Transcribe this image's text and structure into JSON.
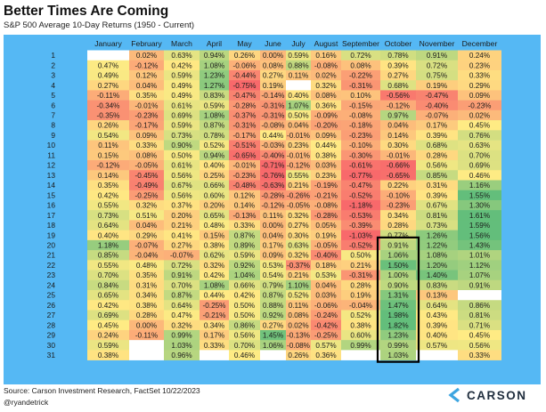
{
  "header": {
    "title": "Better Times Are Coming",
    "subtitle": "S&P 500 Average 10-Day Returns (1950 - Current)"
  },
  "footer": {
    "source": "Source: Carson Investment Research, FactSet 10/22/2023",
    "handle": "@ryandetrick"
  },
  "logo": {
    "name": "CARSON",
    "icon": "carson-chevron-icon"
  },
  "colors": {
    "panel": "#55b8f4",
    "low": "#f8696b",
    "mid": "#ffeb84",
    "high": "#63be7b",
    "blank": "#ffffff",
    "highlight_box": "#000000"
  },
  "chart_data": {
    "type": "heatmap",
    "title": "Better Times Are Coming",
    "subtitle": "S&P 500 Average 10-Day Returns (1950 - Current)",
    "columns": [
      "January",
      "February",
      "March",
      "April",
      "May",
      "June",
      "July",
      "August",
      "September",
      "October",
      "November",
      "December"
    ],
    "rows": [
      "1",
      "2",
      "3",
      "4",
      "5",
      "6",
      "7",
      "8",
      "9",
      "10",
      "11",
      "12",
      "13",
      "14",
      "15",
      "16",
      "17",
      "18",
      "19",
      "20",
      "21",
      "22",
      "23",
      "24",
      "25",
      "26",
      "27",
      "28",
      "29",
      "30",
      "31"
    ],
    "unit": "%",
    "highlight": {
      "column": "October",
      "rows": [
        "20",
        "31"
      ]
    },
    "values": [
      [
        null,
        0.02,
        0.63,
        0.94,
        0.26,
        0.0,
        0.59,
        0.16,
        0.72,
        0.78,
        0.91,
        0.24
      ],
      [
        0.47,
        -0.12,
        0.42,
        1.08,
        -0.06,
        0.08,
        0.88,
        -0.08,
        0.08,
        0.39,
        0.72,
        0.23
      ],
      [
        0.49,
        0.12,
        0.59,
        1.23,
        -0.44,
        0.27,
        0.11,
        0.02,
        -0.22,
        0.27,
        0.75,
        0.33
      ],
      [
        0.27,
        0.04,
        0.49,
        1.27,
        -0.75,
        0.19,
        null,
        0.32,
        -0.31,
        0.68,
        0.19,
        0.29
      ],
      [
        -0.11,
        0.35,
        0.49,
        0.83,
        -0.47,
        -0.14,
        0.4,
        0.08,
        0.1,
        -0.56,
        -0.47,
        0.09
      ],
      [
        -0.34,
        -0.01,
        0.61,
        0.59,
        -0.28,
        -0.31,
        1.07,
        0.36,
        -0.15,
        -0.12,
        -0.4,
        -0.23
      ],
      [
        -0.35,
        -0.23,
        0.69,
        1.08,
        -0.37,
        -0.31,
        0.5,
        -0.09,
        -0.08,
        0.97,
        -0.07,
        0.02
      ],
      [
        0.26,
        -0.17,
        0.59,
        0.87,
        -0.31,
        -0.08,
        0.04,
        -0.2,
        -0.18,
        0.04,
        0.17,
        0.45
      ],
      [
        0.54,
        0.09,
        0.73,
        0.78,
        -0.17,
        0.44,
        -0.01,
        0.09,
        -0.23,
        0.14,
        0.39,
        0.76
      ],
      [
        0.11,
        0.33,
        0.9,
        0.52,
        -0.51,
        -0.03,
        0.23,
        0.44,
        -0.1,
        0.3,
        0.68,
        0.63
      ],
      [
        0.15,
        0.08,
        0.5,
        0.94,
        -0.65,
        -0.4,
        -0.01,
        0.38,
        -0.3,
        -0.01,
        0.28,
        0.7
      ],
      [
        -0.12,
        -0.05,
        0.61,
        0.4,
        -0.01,
        -0.71,
        -0.12,
        0.03,
        -0.61,
        -0.66,
        0.56,
        0.69
      ],
      [
        0.14,
        -0.45,
        0.56,
        0.25,
        -0.23,
        -0.76,
        0.55,
        0.23,
        -0.77,
        -0.65,
        0.85,
        0.46
      ],
      [
        0.35,
        -0.49,
        0.67,
        0.66,
        -0.48,
        -0.63,
        0.21,
        -0.19,
        -0.47,
        0.22,
        0.31,
        1.16
      ],
      [
        0.42,
        -0.25,
        0.56,
        0.6,
        0.12,
        -0.28,
        -0.26,
        -0.21,
        -0.52,
        -0.1,
        0.39,
        1.55
      ],
      [
        0.55,
        0.32,
        0.37,
        0.2,
        0.14,
        -0.12,
        -0.05,
        -0.08,
        -1.18,
        -0.23,
        0.67,
        1.3
      ],
      [
        0.73,
        0.51,
        0.2,
        0.65,
        -0.13,
        0.11,
        0.32,
        -0.28,
        -0.53,
        0.34,
        0.81,
        1.61
      ],
      [
        0.64,
        0.04,
        0.21,
        0.48,
        0.33,
        0.0,
        0.27,
        0.05,
        -0.39,
        0.28,
        0.73,
        1.59
      ],
      [
        0.4,
        0.29,
        0.41,
        0.15,
        0.87,
        0.04,
        0.3,
        0.19,
        -1.03,
        0.77,
        1.26,
        1.56
      ],
      [
        1.18,
        -0.07,
        0.27,
        0.38,
        0.89,
        0.17,
        0.63,
        -0.05,
        -0.52,
        0.91,
        1.22,
        1.43
      ],
      [
        0.85,
        -0.04,
        -0.07,
        0.62,
        0.59,
        0.09,
        0.32,
        -0.4,
        0.5,
        1.06,
        1.08,
        1.01
      ],
      [
        0.55,
        0.48,
        0.72,
        0.32,
        0.92,
        0.53,
        -0.37,
        0.18,
        0.21,
        1.5,
        1.2,
        1.12
      ],
      [
        0.7,
        0.35,
        0.91,
        0.42,
        1.04,
        0.54,
        0.21,
        0.53,
        -0.31,
        1.0,
        1.4,
        1.07
      ],
      [
        0.84,
        0.31,
        0.7,
        1.08,
        0.66,
        0.79,
        1.1,
        0.04,
        0.28,
        0.9,
        0.83,
        0.91
      ],
      [
        0.65,
        0.34,
        0.87,
        0.44,
        0.42,
        0.87,
        0.52,
        0.03,
        0.19,
        1.31,
        0.13,
        null
      ],
      [
        0.42,
        0.38,
        0.64,
        -0.25,
        0.5,
        0.88,
        0.11,
        -0.06,
        -0.04,
        1.47,
        0.64,
        0.86
      ],
      [
        0.69,
        0.28,
        0.47,
        -0.21,
        0.5,
        0.92,
        0.08,
        -0.24,
        0.52,
        1.98,
        0.43,
        0.81
      ],
      [
        0.45,
        0.0,
        0.32,
        0.34,
        0.86,
        0.27,
        0.02,
        -0.42,
        0.38,
        1.82,
        0.39,
        0.71
      ],
      [
        0.24,
        -0.11,
        0.99,
        0.17,
        0.56,
        1.45,
        -0.13,
        -0.25,
        0.6,
        1.23,
        0.4,
        0.45
      ],
      [
        0.59,
        null,
        1.03,
        0.33,
        0.7,
        1.06,
        -0.08,
        0.57,
        0.99,
        0.99,
        0.57,
        0.56
      ],
      [
        0.38,
        null,
        0.96,
        null,
        0.46,
        null,
        0.26,
        0.36,
        null,
        1.03,
        null,
        0.33
      ]
    ]
  }
}
